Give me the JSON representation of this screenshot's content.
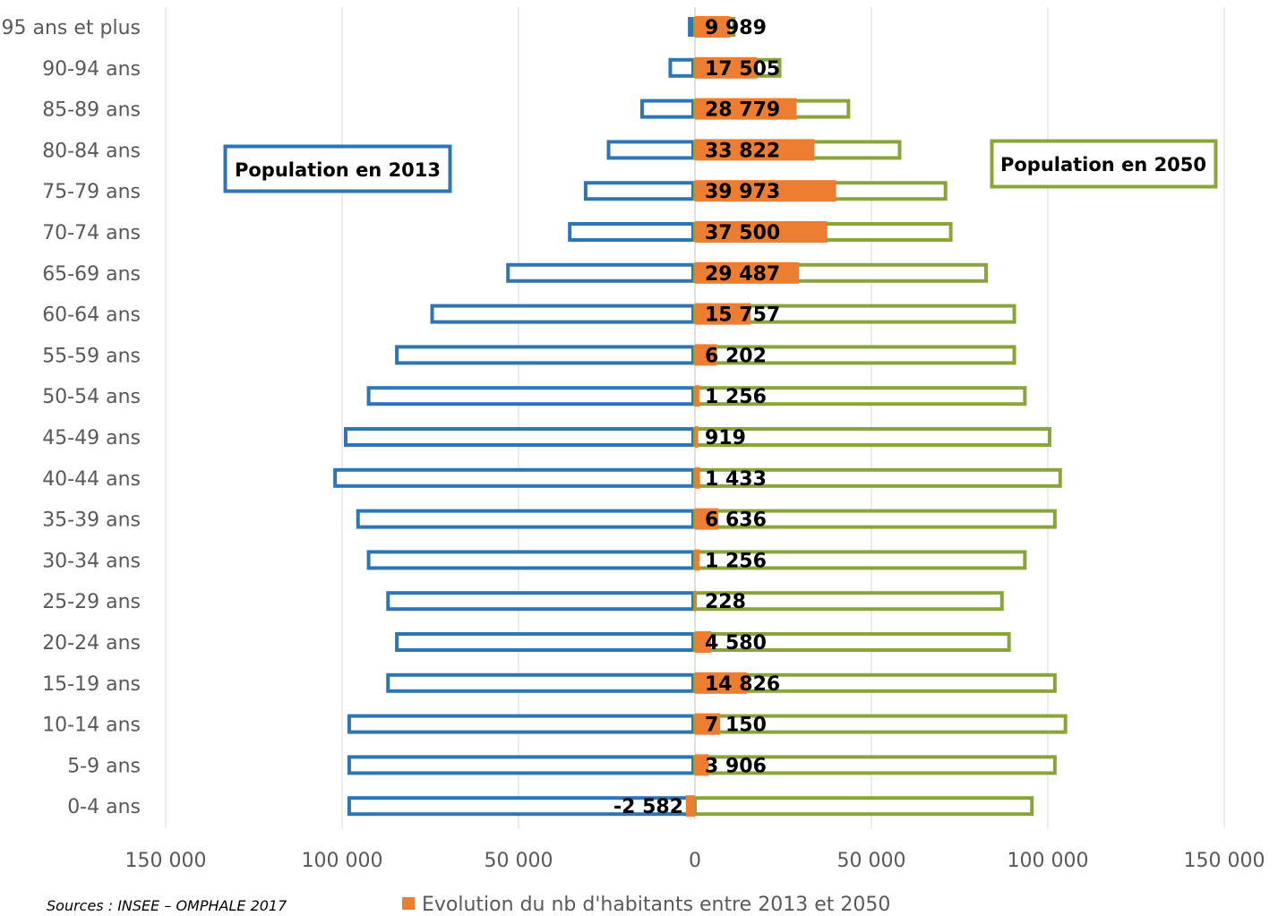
{
  "chart_data": {
    "type": "bar",
    "orientation": "horizontal",
    "subtype": "population-pyramid",
    "categories": [
      "95 ans et plus",
      "90-94 ans",
      "85-89 ans",
      "80-84 ans",
      "75-79 ans",
      "70-74 ans",
      "65-69 ans",
      "60-64 ans",
      "55-59 ans",
      "50-54 ans",
      "45-49 ans",
      "40-44 ans",
      "35-39 ans",
      "30-34 ans",
      "25-29 ans",
      "20-24 ans",
      "15-19 ans",
      "10-14 ans",
      "5-9 ans",
      "0-4 ans"
    ],
    "series": [
      {
        "name": "Population en 2013",
        "color": "#2E75B6",
        "style": "outline",
        "side": "left",
        "values": [
          -2000,
          -7500,
          -15500,
          -25000,
          -31500,
          -36000,
          -53500,
          -75000,
          -85000,
          -93000,
          -99500,
          -102500,
          -96000,
          -93000,
          -87500,
          -85000,
          -87500,
          -98500,
          -98500,
          -98500
        ]
      },
      {
        "name": "Population en 2050",
        "color": "#8AA43A",
        "style": "outline",
        "side": "right",
        "values": [
          11500,
          24500,
          44000,
          58500,
          71500,
          73000,
          83000,
          91000,
          91000,
          94000,
          101000,
          104000,
          102500,
          94000,
          87500,
          89500,
          102500,
          105500,
          102500,
          96000
        ]
      },
      {
        "name": "Evolution du nb d'habitants entre 2013 et 2050",
        "color": "#ED7D31",
        "style": "filled",
        "values": [
          9989,
          17505,
          28779,
          33822,
          39973,
          37500,
          29487,
          15757,
          6202,
          1256,
          919,
          1433,
          6636,
          1256,
          228,
          4580,
          14826,
          7150,
          3906,
          -2582
        ],
        "labels": [
          "9 989",
          "17 505",
          "28 779",
          "33 822",
          "39 973",
          "37 500",
          "29 487",
          "15 757",
          "6 202",
          "1 256",
          "919",
          "1 433",
          "6 636",
          "1 256",
          "228",
          "4 580",
          "14 826",
          "7 150",
          "3 906",
          "-2 582"
        ]
      }
    ],
    "x_ticks": [
      {
        "value": -150000,
        "label": "150 000"
      },
      {
        "value": -100000,
        "label": "100 000"
      },
      {
        "value": -50000,
        "label": "50 000"
      },
      {
        "value": 0,
        "label": "0"
      },
      {
        "value": 50000,
        "label": "50 000"
      },
      {
        "value": 100000,
        "label": "100 000"
      },
      {
        "value": 150000,
        "label": "150 000"
      }
    ],
    "xlim": [
      -150000,
      150000
    ],
    "grid": "vertical",
    "annotations": {
      "left_box": "Population en 2013",
      "right_box": "Population en 2050"
    },
    "legend": {
      "position": "bottom",
      "label": "Evolution du nb d'habitants entre 2013 et 2050"
    },
    "source": "Sources : INSEE – OMPHALE 2017"
  }
}
